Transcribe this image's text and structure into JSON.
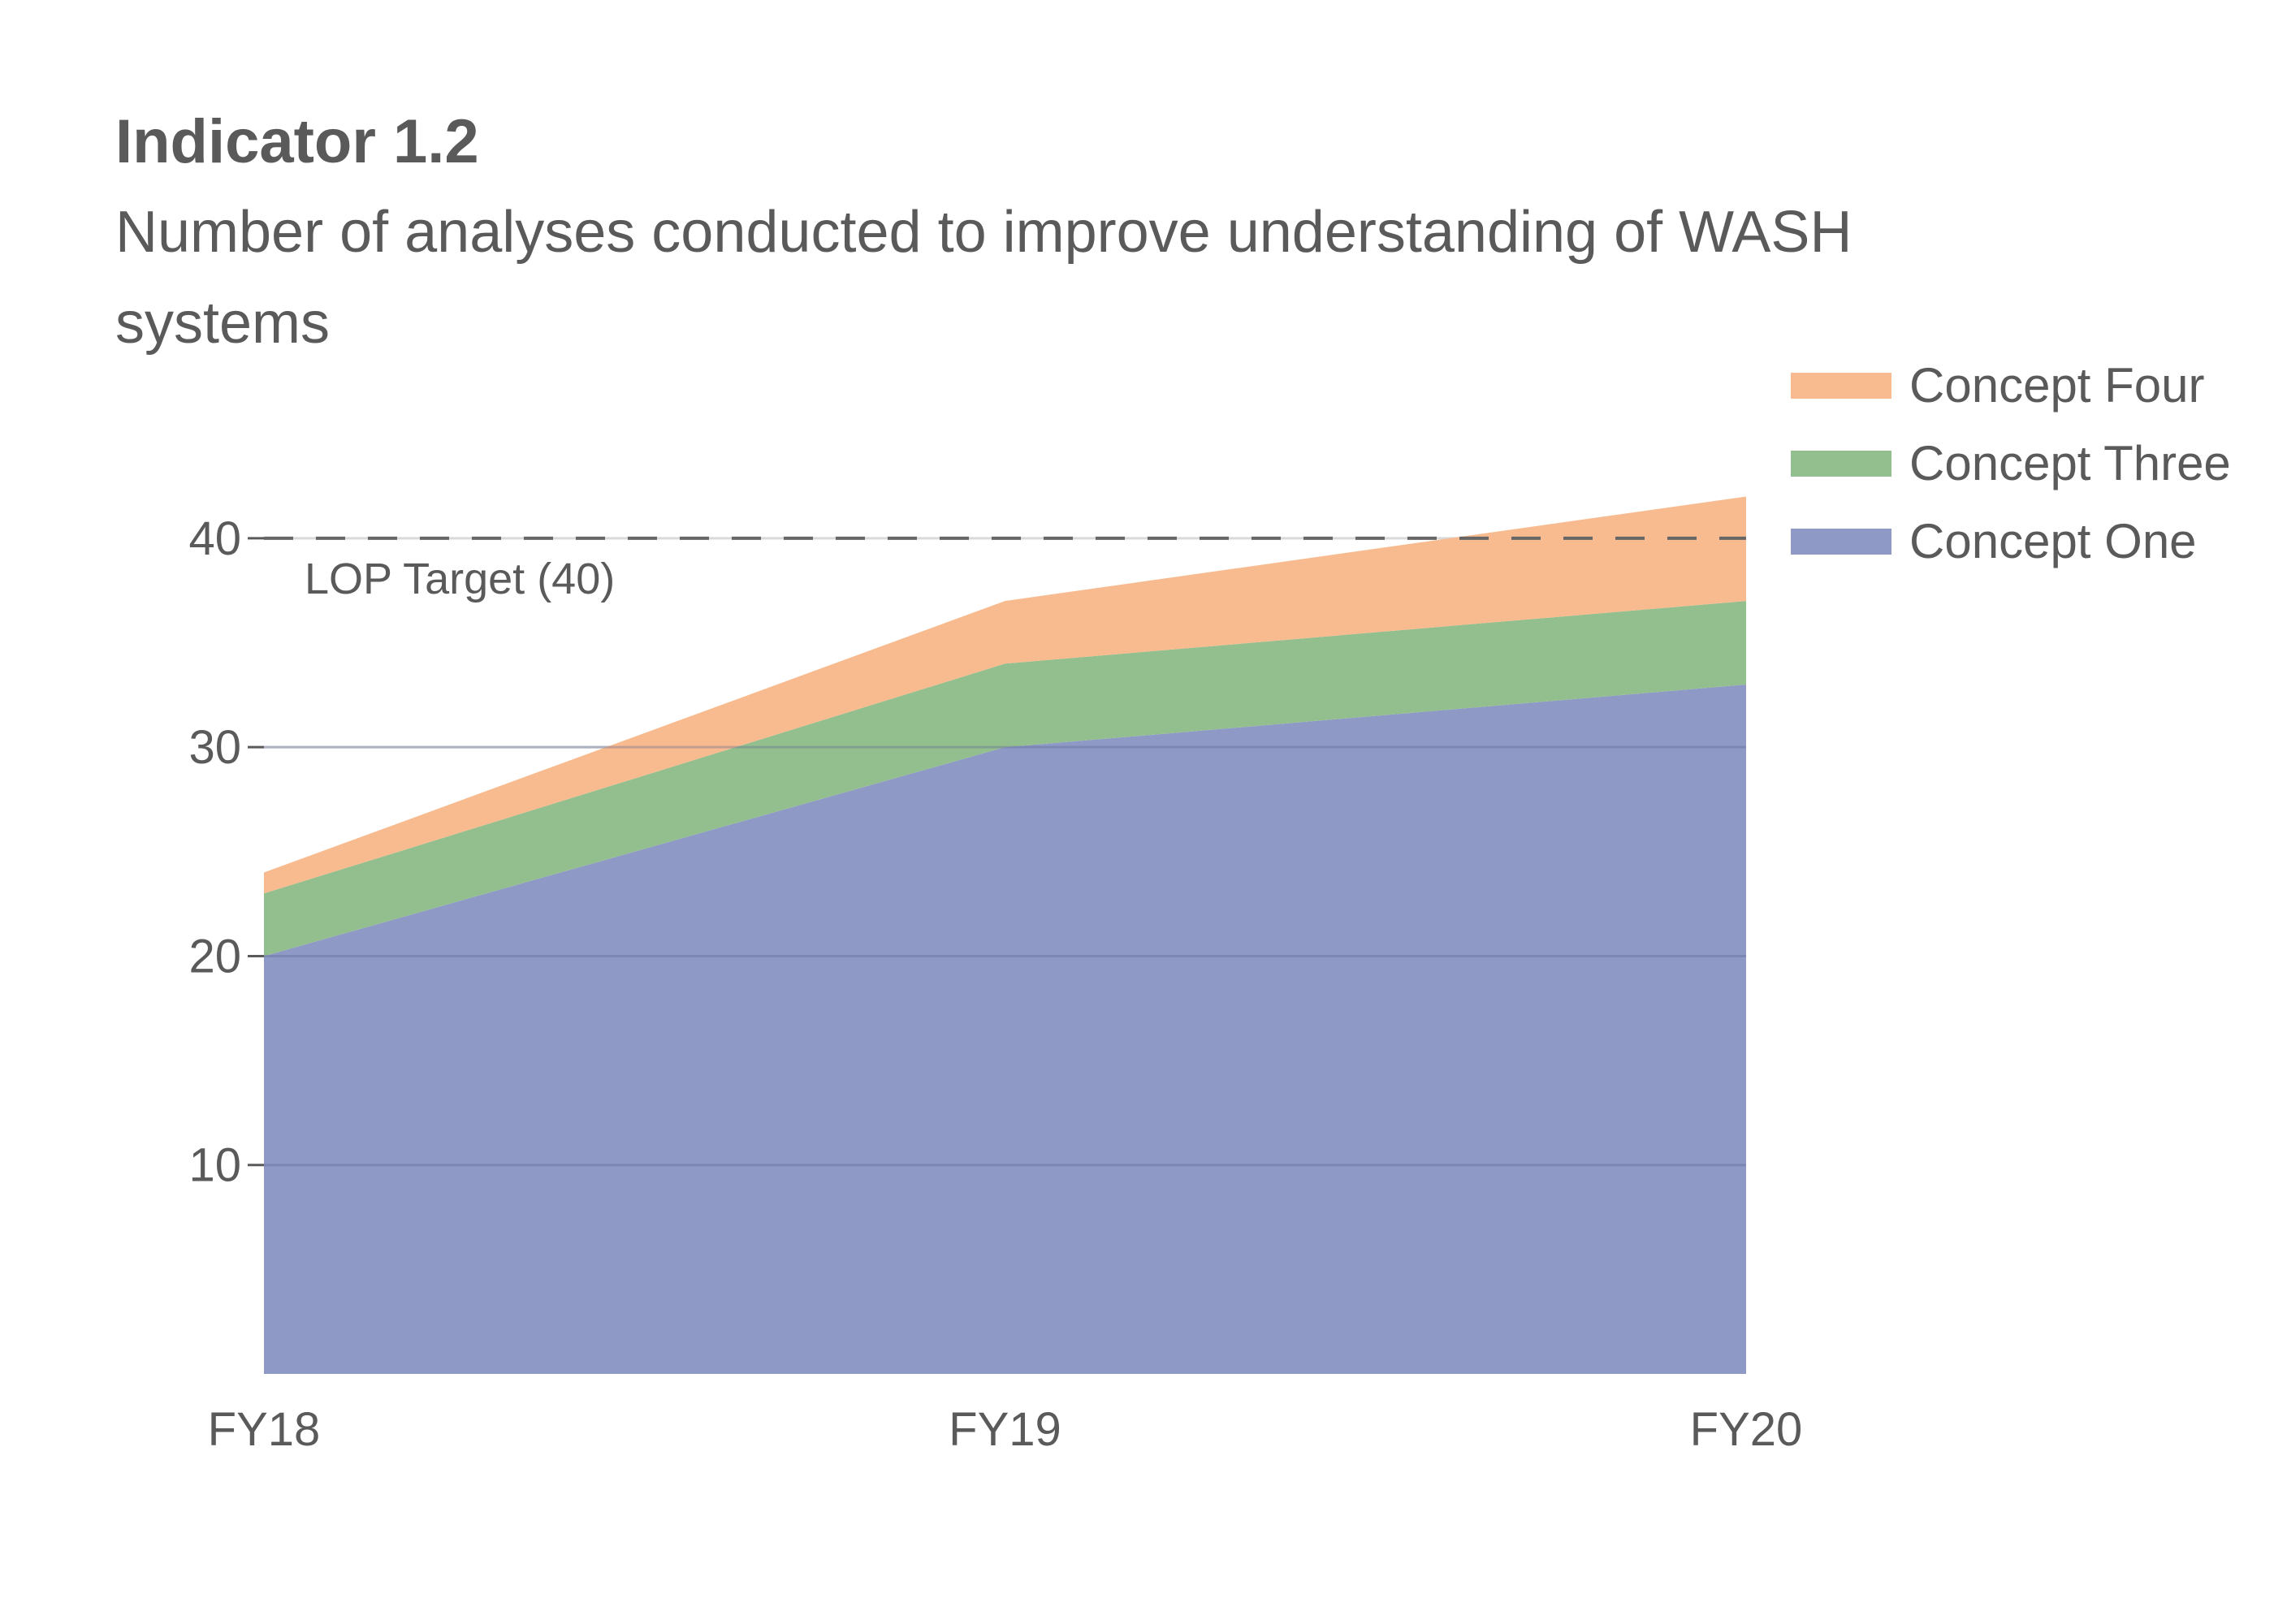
{
  "chart_data": {
    "type": "area",
    "stacked": true,
    "title": "Indicator 1.2",
    "subtitle": "Number of analyses conducted to improve understanding of WASH systems",
    "xlabel": "",
    "ylabel": "",
    "categories": [
      "FY18",
      "FY19",
      "FY20"
    ],
    "series": [
      {
        "name": "Concept One",
        "values": [
          20,
          30,
          33
        ],
        "color": "#8e99c6"
      },
      {
        "name": "Concept Three",
        "values": [
          3,
          4,
          4
        ],
        "color": "#93bf8f"
      },
      {
        "name": "Concept Four",
        "values": [
          1,
          3,
          5
        ],
        "color": "#f8bb8f"
      }
    ],
    "yticks": [
      10,
      20,
      30,
      40
    ],
    "ylim": [
      0,
      44
    ],
    "grid": true,
    "legend_position": "top-right",
    "target": {
      "value": 40,
      "label": "LOP Target (40)",
      "style": "dashed",
      "color": "#666666"
    }
  }
}
